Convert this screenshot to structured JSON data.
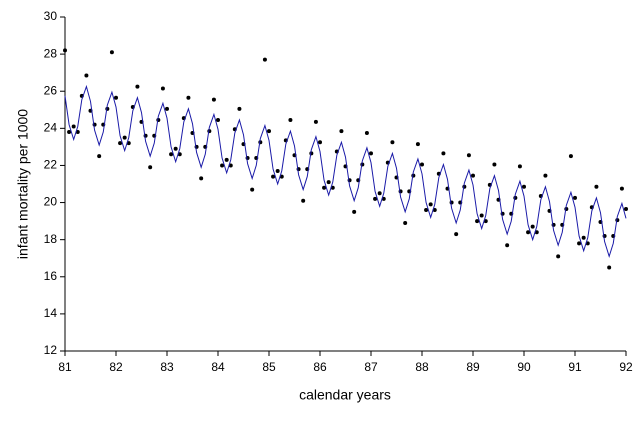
{
  "chart_data": {
    "type": "line",
    "xlabel": "calendar years",
    "ylabel": "infant mortality per 1000",
    "x": [
      81,
      81.08,
      81.17,
      81.25,
      81.33,
      81.42,
      81.5,
      81.58,
      81.67,
      81.75,
      81.83,
      81.92,
      82,
      82.08,
      82.17,
      82.25,
      82.33,
      82.42,
      82.5,
      82.58,
      82.67,
      82.75,
      82.83,
      82.92,
      83,
      83.08,
      83.17,
      83.25,
      83.33,
      83.42,
      83.5,
      83.58,
      83.67,
      83.75,
      83.83,
      83.92,
      84,
      84.08,
      84.17,
      84.25,
      84.33,
      84.42,
      84.5,
      84.58,
      84.67,
      84.75,
      84.83,
      84.92,
      85,
      85.08,
      85.17,
      85.25,
      85.33,
      85.42,
      85.5,
      85.58,
      85.67,
      85.75,
      85.83,
      85.92,
      86,
      86.08,
      86.17,
      86.25,
      86.33,
      86.42,
      86.5,
      86.58,
      86.67,
      86.75,
      86.83,
      86.92,
      87,
      87.08,
      87.17,
      87.25,
      87.33,
      87.42,
      87.5,
      87.58,
      87.67,
      87.75,
      87.83,
      87.92,
      88,
      88.08,
      88.17,
      88.25,
      88.33,
      88.42,
      88.5,
      88.58,
      88.67,
      88.75,
      88.83,
      88.92,
      89,
      89.08,
      89.17,
      89.25,
      89.33,
      89.42,
      89.5,
      89.58,
      89.67,
      89.75,
      89.83,
      89.92,
      90,
      90.08,
      90.17,
      90.25,
      90.33,
      90.42,
      90.5,
      90.58,
      90.67,
      90.75,
      90.83,
      90.92,
      91,
      91.08,
      91.17,
      91.25,
      91.33,
      91.42,
      91.5,
      91.58,
      91.67,
      91.75,
      91.83,
      91.92,
      92
    ],
    "series": [
      {
        "mode": "markers",
        "color": "#000000",
        "values": [
          28.2,
          23.8,
          24.1,
          23.8,
          25.75,
          26.85,
          24.95,
          24.2,
          22.5,
          24.2,
          25.05,
          28.1,
          25.65,
          23.2,
          23.5,
          23.2,
          25.15,
          26.25,
          24.35,
          23.6,
          21.9,
          23.6,
          24.45,
          26.15,
          25.05,
          22.6,
          22.9,
          22.6,
          24.55,
          25.65,
          23.75,
          23,
          21.3,
          23,
          23.85,
          25.55,
          24.45,
          22,
          22.3,
          22,
          23.95,
          25.05,
          23.15,
          22.4,
          20.7,
          22.4,
          23.25,
          27.7,
          23.85,
          21.4,
          21.7,
          21.4,
          23.35,
          24.45,
          22.55,
          21.8,
          20.1,
          21.8,
          22.65,
          24.35,
          23.25,
          20.8,
          21.1,
          20.8,
          22.75,
          23.85,
          21.95,
          21.2,
          19.5,
          21.2,
          22.05,
          23.75,
          22.65,
          20.2,
          20.5,
          20.2,
          22.15,
          23.25,
          21.35,
          20.6,
          18.9,
          20.6,
          21.45,
          23.15,
          22.05,
          19.6,
          19.9,
          19.6,
          21.55,
          22.65,
          20.75,
          20,
          18.3,
          20,
          20.85,
          22.55,
          21.45,
          19,
          19.3,
          19,
          20.95,
          22.05,
          20.15,
          19.4,
          17.7,
          19.4,
          20.25,
          21.95,
          20.85,
          18.4,
          18.7,
          18.4,
          20.35,
          21.45,
          19.55,
          18.8,
          17.1,
          18.8,
          19.65,
          22.5,
          20.25,
          17.8,
          18.1,
          17.8,
          19.75,
          20.85,
          18.95,
          18.2,
          16.5,
          18.2,
          19.05,
          20.75,
          19.65
        ]
      },
      {
        "mode": "lines",
        "color": "#1a1aa8",
        "values": [
          25.75,
          24.2,
          23.4,
          24.1,
          25.55,
          26.25,
          25.45,
          23.9,
          23.1,
          23.8,
          25.25,
          25.95,
          25.15,
          23.6,
          22.8,
          23.5,
          24.95,
          25.65,
          24.85,
          23.3,
          22.5,
          23.2,
          24.65,
          25.35,
          24.55,
          23,
          22.2,
          22.9,
          24.35,
          25.05,
          24.25,
          22.7,
          21.9,
          22.6,
          24.05,
          24.75,
          23.95,
          22.4,
          21.6,
          22.3,
          23.75,
          24.45,
          23.65,
          22.1,
          21.3,
          22,
          23.45,
          24.15,
          23.35,
          21.8,
          21,
          21.7,
          23.15,
          23.85,
          23.05,
          21.5,
          20.7,
          21.4,
          22.85,
          23.55,
          22.75,
          21.2,
          20.4,
          21.1,
          22.55,
          23.25,
          22.45,
          20.9,
          20.1,
          20.8,
          22.25,
          22.95,
          22.15,
          20.6,
          19.8,
          20.5,
          21.95,
          22.65,
          21.85,
          20.3,
          19.5,
          20.2,
          21.65,
          22.35,
          21.55,
          20,
          19.2,
          19.9,
          21.35,
          22.05,
          21.25,
          19.7,
          18.9,
          19.6,
          21.05,
          21.75,
          20.95,
          19.4,
          18.6,
          19.3,
          20.75,
          21.45,
          20.65,
          19.1,
          18.3,
          19,
          20.45,
          21.15,
          20.35,
          18.8,
          18,
          18.7,
          20.15,
          20.85,
          20.05,
          18.5,
          17.7,
          18.4,
          19.85,
          20.55,
          19.75,
          18.2,
          17.4,
          18.1,
          19.55,
          20.25,
          19.45,
          17.9,
          17.1,
          17.8,
          19.25,
          19.95,
          19.15
        ]
      }
    ],
    "xlim": [
      81,
      92
    ],
    "xticks": [
      81,
      82,
      83,
      84,
      85,
      86,
      87,
      88,
      89,
      90,
      91,
      92
    ],
    "ylim": [
      12,
      30
    ],
    "yticks": [
      12,
      14,
      16,
      18,
      20,
      22,
      24,
      26,
      28,
      30
    ],
    "grid": false
  }
}
